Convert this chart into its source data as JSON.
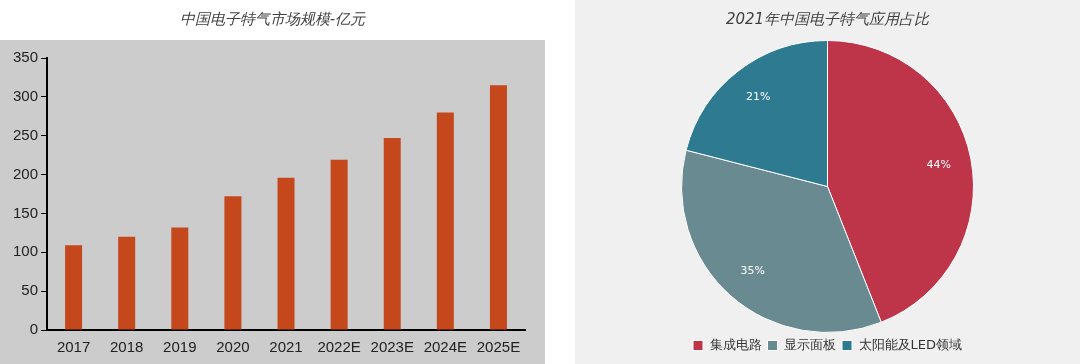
{
  "chart_data": [
    {
      "type": "bar",
      "title": "中国电子特气市场规模-亿元",
      "categories": [
        "2017",
        "2018",
        "2019",
        "2020",
        "2021",
        "2022E",
        "2023E",
        "2024E",
        "2025E"
      ],
      "values": [
        109,
        120,
        132,
        172,
        196,
        219,
        247,
        280,
        315
      ],
      "color": "#c4481c",
      "ylim": [
        0,
        350
      ],
      "yticks": [
        0,
        50,
        100,
        150,
        200,
        250,
        300,
        350
      ],
      "grid": false,
      "legend": false
    },
    {
      "type": "pie",
      "title": "2021年中国电子特气应用占比",
      "categories": [
        "集成电路",
        "显示面板",
        "太阳能及LED领域"
      ],
      "values": [
        44,
        35,
        21
      ],
      "colors": [
        "#be354a",
        "#6a8a91",
        "#2d7a91"
      ],
      "value_labels": [
        "44%",
        "35%",
        "21%"
      ],
      "legend": "bottom"
    }
  ]
}
